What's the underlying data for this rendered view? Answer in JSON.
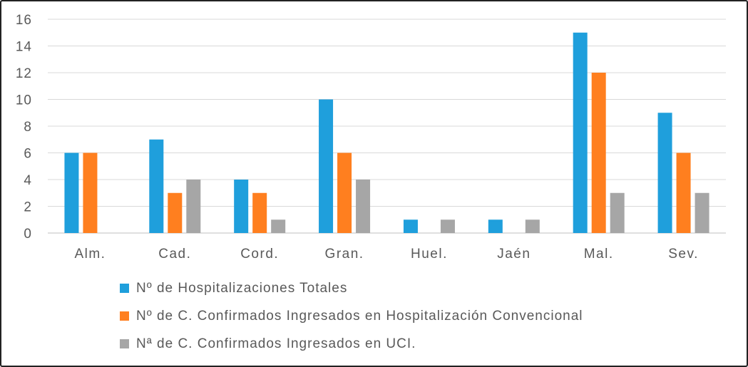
{
  "chart_data": {
    "type": "bar",
    "categories": [
      "Alm.",
      "Cad.",
      "Cord.",
      "Gran.",
      "Huel.",
      "Jaén",
      "Mal.",
      "Sev."
    ],
    "series": [
      {
        "name": "Nº de Hospitalizaciones Totales",
        "color": "#1f9fdc",
        "values": [
          6,
          7,
          4,
          10,
          1,
          1,
          15,
          9
        ]
      },
      {
        "name": "Nº de C. Confirmados Ingresados en Hospitalización Convencional",
        "color": "#ff7f1f",
        "values": [
          6,
          3,
          3,
          6,
          0,
          0,
          12,
          6
        ]
      },
      {
        "name": "Nª de C. Confirmados Ingresados en UCI.",
        "color": "#a6a6a6",
        "values": [
          0,
          4,
          1,
          4,
          1,
          1,
          3,
          3
        ]
      }
    ],
    "yticks": [
      0,
      2,
      4,
      6,
      8,
      10,
      12,
      14,
      16
    ],
    "ylim": [
      0,
      16
    ],
    "grid": true,
    "legend_position": "bottom-left"
  }
}
